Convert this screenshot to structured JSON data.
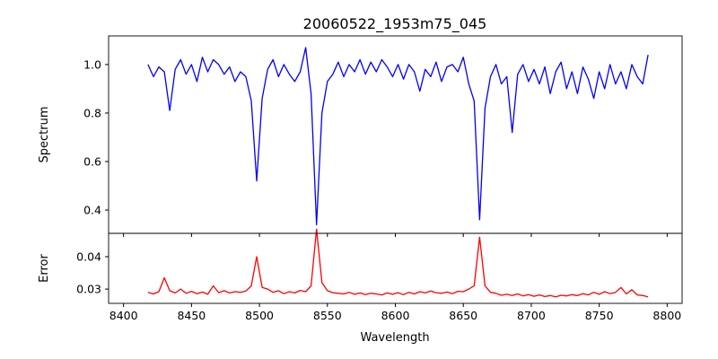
{
  "chart_data": [
    {
      "type": "line",
      "title": "20060522_1953m75_045",
      "xlabel": "",
      "ylabel": "Spectrum",
      "xlim": [
        8389,
        8811
      ],
      "ylim": [
        0.304,
        1.118
      ],
      "xticks": [
        8400,
        8450,
        8500,
        8550,
        8600,
        8650,
        8700,
        8750,
        8800
      ],
      "yticks": [
        0.4,
        0.6,
        0.8,
        1.0
      ],
      "ytick_labels": [
        "0.4",
        "0.6",
        "0.8",
        "1.0"
      ],
      "color": "#0000ff",
      "x_start": 8418,
      "x_step": 4,
      "series": [
        {
          "name": "Spectrum",
          "values": [
            1.0,
            0.95,
            0.99,
            0.97,
            0.81,
            0.98,
            1.02,
            0.96,
            1.0,
            0.93,
            1.03,
            0.97,
            1.02,
            1.0,
            0.96,
            0.99,
            0.93,
            0.97,
            0.95,
            0.85,
            0.52,
            0.86,
            0.98,
            1.02,
            0.95,
            1.0,
            0.96,
            0.93,
            0.97,
            1.07,
            0.88,
            0.34,
            0.8,
            0.93,
            0.96,
            1.01,
            0.95,
            1.0,
            0.97,
            1.02,
            0.96,
            1.01,
            0.97,
            1.02,
            0.99,
            0.95,
            1.0,
            0.94,
            1.0,
            0.97,
            0.89,
            0.98,
            0.95,
            1.01,
            0.93,
            0.99,
            1.0,
            0.97,
            1.03,
            0.92,
            0.85,
            0.36,
            0.82,
            0.95,
            1.0,
            0.92,
            0.95,
            0.72,
            0.96,
            1.0,
            0.93,
            0.98,
            0.92,
            0.99,
            0.88,
            0.97,
            1.01,
            0.9,
            0.97,
            0.88,
            0.99,
            0.94,
            0.86,
            0.97,
            0.9,
            1.0,
            0.92,
            0.97,
            0.9,
            1.0,
            0.95,
            0.92,
            1.04
          ]
        }
      ]
    },
    {
      "type": "line",
      "title": "",
      "xlabel": "Wavelength",
      "ylabel": "Error",
      "xlim": [
        8389,
        8811
      ],
      "ylim": [
        0.0256,
        0.0472
      ],
      "xticks": [
        8400,
        8450,
        8500,
        8550,
        8600,
        8650,
        8700,
        8750,
        8800
      ],
      "xtick_labels": [
        "8400",
        "8450",
        "8500",
        "8550",
        "8600",
        "8650",
        "8700",
        "8750",
        "8800"
      ],
      "yticks": [
        0.03,
        0.04
      ],
      "ytick_labels": [
        "0.03",
        "0.04"
      ],
      "color": "#ff0000",
      "x_start": 8418,
      "x_step": 4,
      "series": [
        {
          "name": "Error",
          "values": [
            0.029,
            0.0285,
            0.0292,
            0.0335,
            0.0295,
            0.0288,
            0.03,
            0.0287,
            0.0293,
            0.0286,
            0.0291,
            0.0284,
            0.031,
            0.0289,
            0.0295,
            0.0288,
            0.0292,
            0.029,
            0.0294,
            0.031,
            0.04,
            0.0305,
            0.03,
            0.029,
            0.0295,
            0.0286,
            0.0292,
            0.0288,
            0.0296,
            0.0292,
            0.031,
            0.0485,
            0.032,
            0.0295,
            0.0289,
            0.0287,
            0.0285,
            0.029,
            0.0284,
            0.0288,
            0.0283,
            0.0287,
            0.0285,
            0.0282,
            0.0288,
            0.0284,
            0.0289,
            0.0283,
            0.029,
            0.0285,
            0.0292,
            0.0288,
            0.0294,
            0.0289,
            0.0287,
            0.0291,
            0.0286,
            0.0293,
            0.0292,
            0.03,
            0.031,
            0.046,
            0.031,
            0.029,
            0.0287,
            0.0281,
            0.0284,
            0.028,
            0.0285,
            0.0279,
            0.0283,
            0.0278,
            0.0282,
            0.0277,
            0.028,
            0.0276,
            0.0281,
            0.0279,
            0.0283,
            0.028,
            0.0286,
            0.0282,
            0.029,
            0.0284,
            0.0292,
            0.0286,
            0.029,
            0.0305,
            0.0285,
            0.0298,
            0.0282,
            0.028,
            0.0276
          ]
        }
      ]
    }
  ]
}
